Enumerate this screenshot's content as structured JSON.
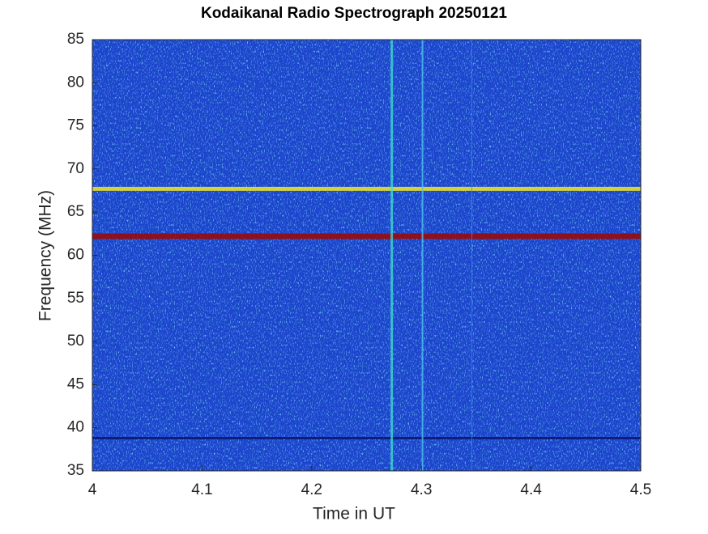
{
  "chart_data": {
    "type": "spectrogram",
    "title": "Kodaikanal Radio Spectrograph  20250121",
    "xlabel": "Time in UT",
    "ylabel": "Frequency (MHz)",
    "xlim": [
      4,
      4.5
    ],
    "xticks": [
      4,
      4.1,
      4.2,
      4.3,
      4.4,
      4.5
    ],
    "ylim": [
      35,
      85
    ],
    "yticks": [
      35,
      40,
      45,
      50,
      55,
      60,
      65,
      70,
      75,
      80,
      85
    ],
    "background_color": "#1c44cc",
    "horizontal_lines": [
      {
        "y": 67.7,
        "color": "#e8e030",
        "width": 5
      },
      {
        "y": 62.2,
        "color": "#9a0a0a",
        "width": 7
      },
      {
        "y": 38.8,
        "color": "#0a1a70",
        "width": 3
      }
    ],
    "vertical_lines": [
      {
        "x": 4.273,
        "color": "#40e0d0",
        "width": 3
      },
      {
        "x": 4.301,
        "color": "#50c8f0",
        "width": 2
      },
      {
        "x": 4.346,
        "color": "#3a8ae8",
        "width": 1
      }
    ]
  }
}
